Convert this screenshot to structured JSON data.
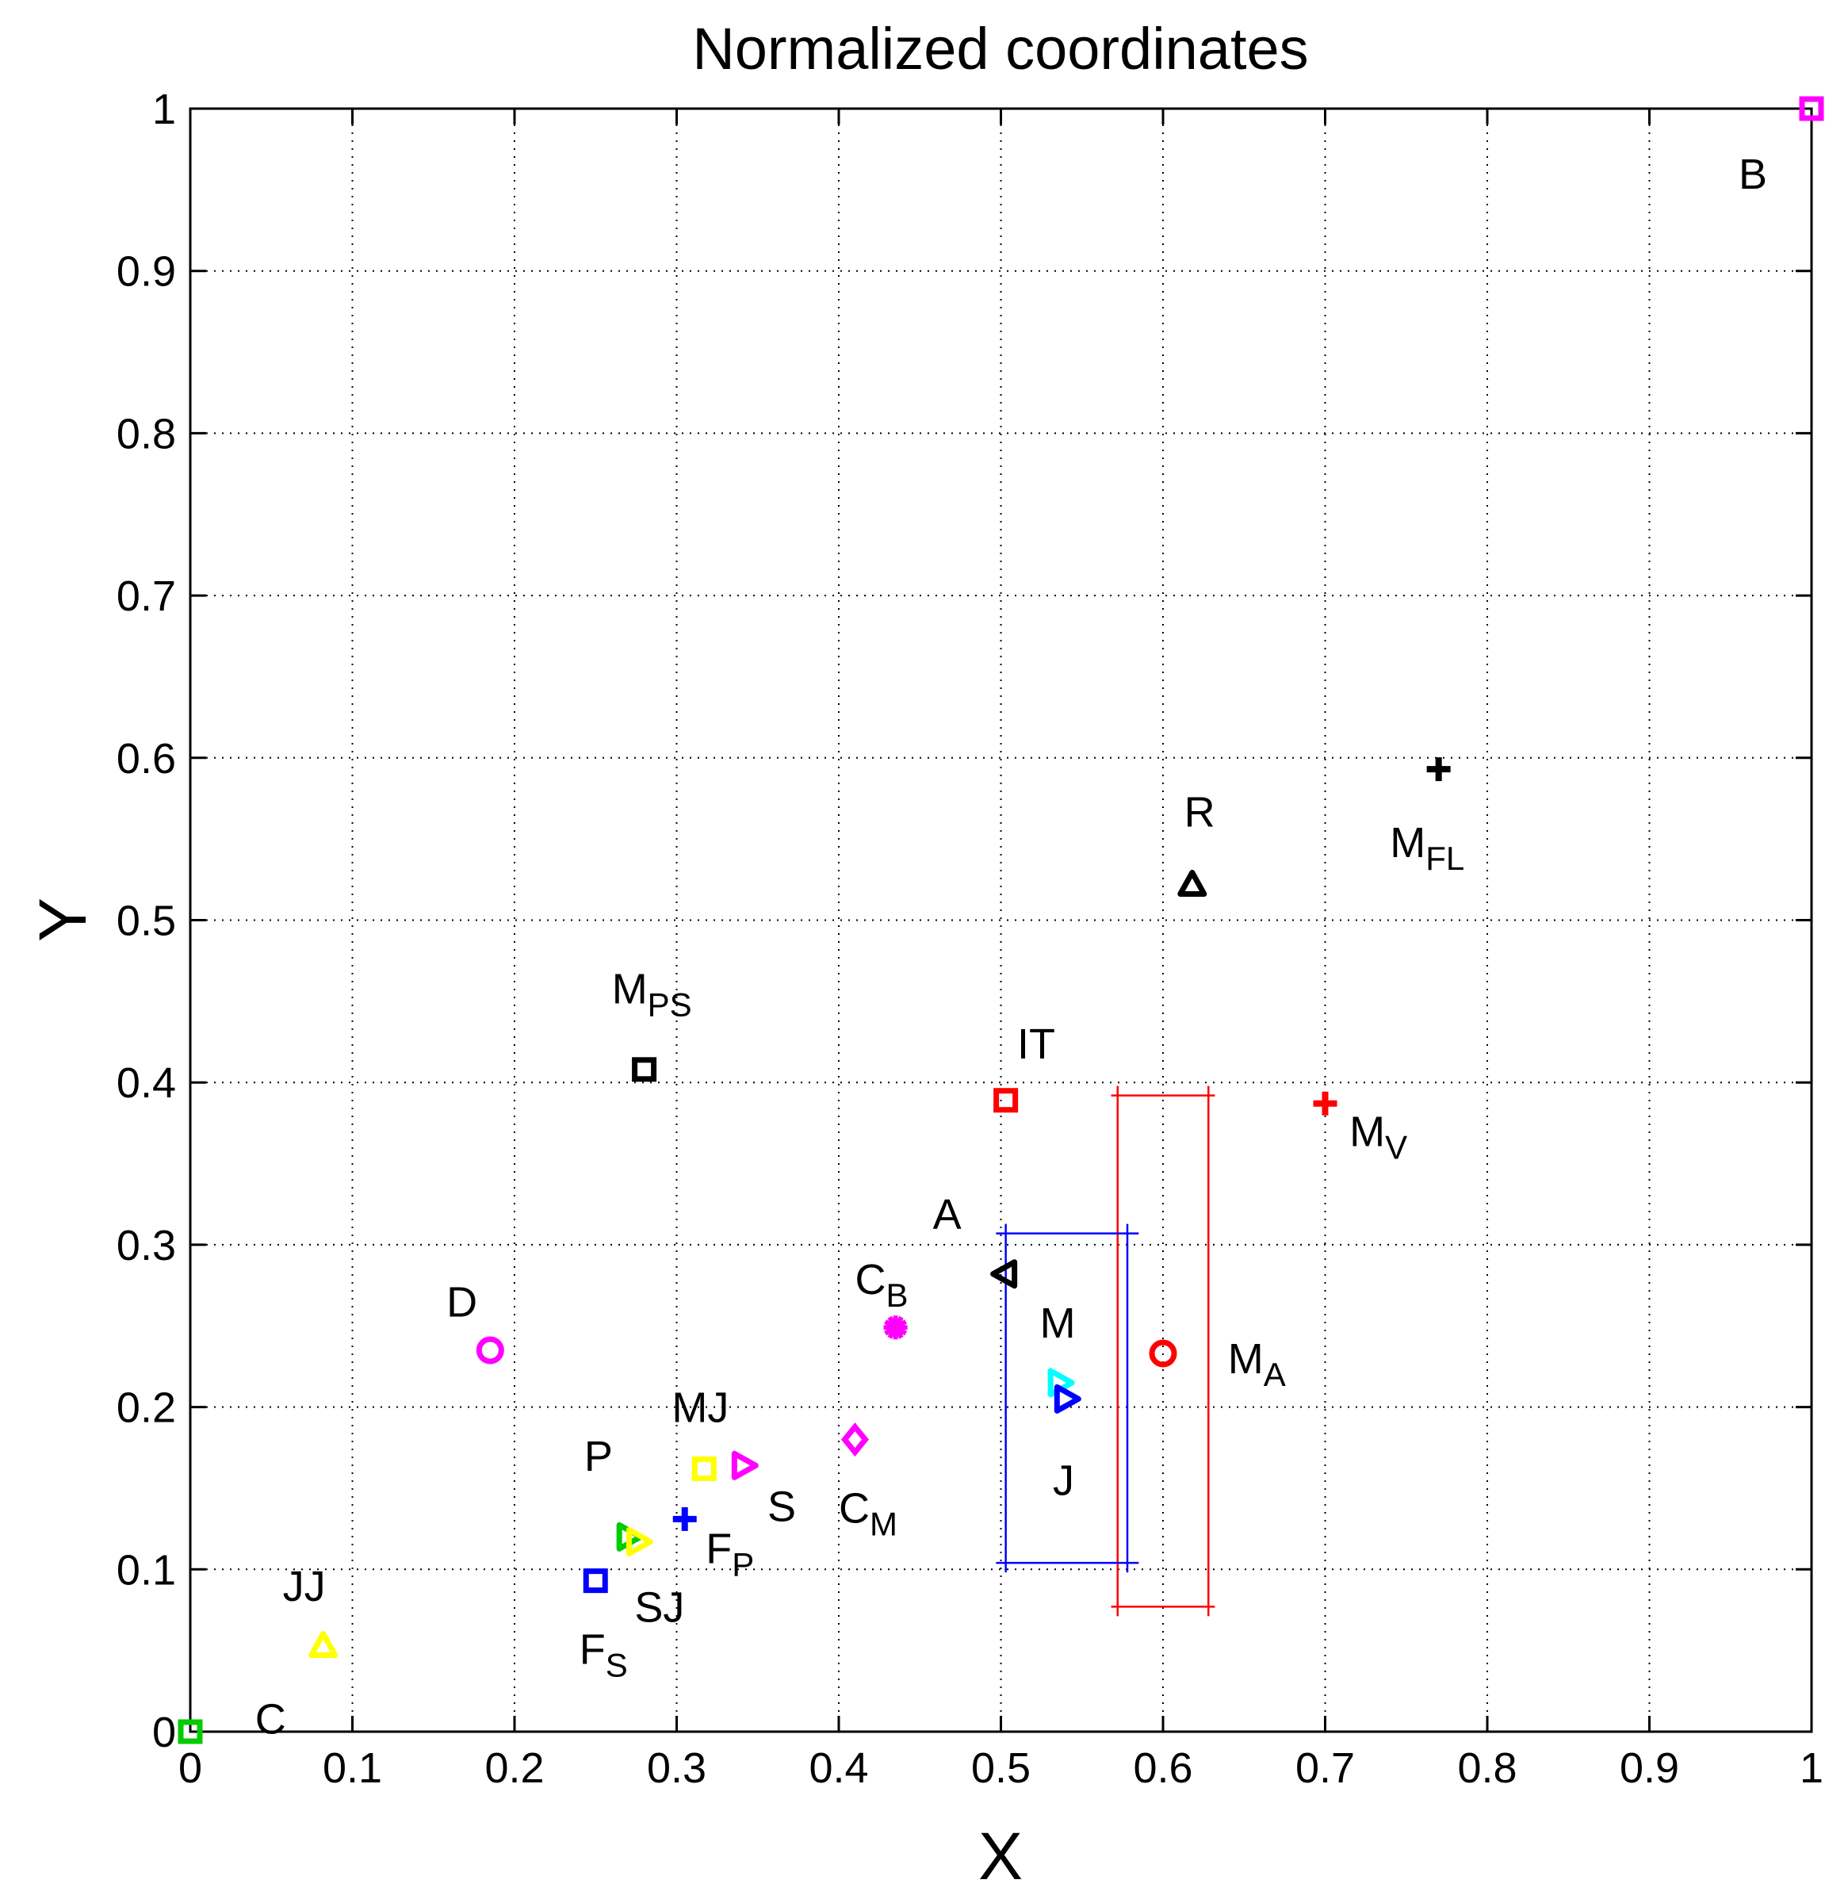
{
  "chart_data": {
    "type": "scatter",
    "title": "Normalized coordinates",
    "xlabel": "X",
    "ylabel": "Y",
    "xlim": [
      0,
      1
    ],
    "ylim": [
      0,
      1
    ],
    "xticks": [
      "0",
      "0.1",
      "0.2",
      "0.3",
      "0.4",
      "0.5",
      "0.6",
      "0.7",
      "0.8",
      "0.9",
      "1"
    ],
    "yticks": [
      "0",
      "0.1",
      "0.2",
      "0.3",
      "0.4",
      "0.5",
      "0.6",
      "0.7",
      "0.8",
      "0.9",
      "1"
    ],
    "grid": true,
    "points": [
      {
        "id": "B",
        "label": "B",
        "sub": "",
        "x": 1.0,
        "y": 1.0,
        "marker": "square",
        "color": "#ff00ff",
        "label_dx": -0.045,
        "label_dy": -0.04
      },
      {
        "id": "MFL",
        "label": "M",
        "sub": "FL",
        "x": 0.77,
        "y": 0.593,
        "marker": "plus",
        "color": "#000000",
        "label_dx": -0.03,
        "label_dy": -0.045
      },
      {
        "id": "R",
        "label": "R",
        "sub": "",
        "x": 0.618,
        "y": 0.522,
        "marker": "triangle-up",
        "color": "#000000",
        "label_dx": -0.005,
        "label_dy": 0.045
      },
      {
        "id": "MPS",
        "label": "M",
        "sub": "PS",
        "x": 0.28,
        "y": 0.408,
        "marker": "square",
        "color": "#000000",
        "label_dx": -0.02,
        "label_dy": 0.05
      },
      {
        "id": "IT",
        "label": "IT",
        "sub": "",
        "x": 0.503,
        "y": 0.389,
        "marker": "square",
        "color": "#ff0000",
        "label_dx": 0.007,
        "label_dy": 0.035
      },
      {
        "id": "MV",
        "label": "M",
        "sub": "V",
        "x": 0.7,
        "y": 0.387,
        "marker": "plus",
        "color": "#ff0000",
        "label_dx": 0.015,
        "label_dy": -0.017
      },
      {
        "id": "A",
        "label": "A",
        "sub": "",
        "x": 0.503,
        "y": 0.282,
        "marker": "triangle-left",
        "color": "#000000",
        "label_dx": -0.045,
        "label_dy": 0.037
      },
      {
        "id": "CB",
        "label": "C",
        "sub": "B",
        "x": 0.435,
        "y": 0.249,
        "marker": "star",
        "color": "#ff00ff",
        "label_dx": -0.025,
        "label_dy": 0.03
      },
      {
        "id": "D",
        "label": "D",
        "sub": "",
        "x": 0.185,
        "y": 0.235,
        "marker": "circle",
        "color": "#ff00ff",
        "label_dx": -0.027,
        "label_dy": 0.03
      },
      {
        "id": "MA",
        "label": "M",
        "sub": "A",
        "x": 0.6,
        "y": 0.233,
        "marker": "circle",
        "color": "#ff0000",
        "label_dx": 0.04,
        "label_dy": -0.003
      },
      {
        "id": "M",
        "label": "M",
        "sub": "",
        "x": 0.536,
        "y": 0.215,
        "marker": "triangle-right",
        "color": "#00ffff",
        "label_dx": -0.012,
        "label_dy": 0.037
      },
      {
        "id": "J",
        "label": "J",
        "sub": "",
        "x": 0.54,
        "y": 0.205,
        "marker": "triangle-right",
        "color": "#0000ff",
        "label_dx": -0.008,
        "label_dy": -0.05
      },
      {
        "id": "CM",
        "label": "C",
        "sub": "M",
        "x": 0.41,
        "y": 0.18,
        "marker": "diamond",
        "color": "#ff00ff",
        "label_dx": -0.01,
        "label_dy": -0.042
      },
      {
        "id": "MJ",
        "label": "MJ",
        "sub": "",
        "x": 0.317,
        "y": 0.162,
        "marker": "square",
        "color": "#ffff00",
        "label_dx": -0.02,
        "label_dy": 0.038
      },
      {
        "id": "S",
        "label": "S",
        "sub": "",
        "x": 0.341,
        "y": 0.164,
        "marker": "triangle-right",
        "color": "#ff00ff",
        "label_dx": 0.015,
        "label_dy": -0.025
      },
      {
        "id": "FP",
        "label": "F",
        "sub": "P",
        "x": 0.305,
        "y": 0.131,
        "marker": "plus",
        "color": "#0000ff",
        "label_dx": 0.013,
        "label_dy": -0.018
      },
      {
        "id": "P",
        "label": "P",
        "sub": "",
        "x": 0.27,
        "y": 0.12,
        "marker": "triangle-right",
        "color": "#00cc00",
        "label_dx": -0.027,
        "label_dy": 0.05
      },
      {
        "id": "SJ",
        "label": "SJ",
        "sub": "",
        "x": 0.276,
        "y": 0.117,
        "marker": "triangle-right",
        "color": "#ffff00",
        "label_dx": -0.002,
        "label_dy": -0.04
      },
      {
        "id": "FS",
        "label": "F",
        "sub": "S",
        "x": 0.25,
        "y": 0.093,
        "marker": "square",
        "color": "#0000ff",
        "label_dx": -0.01,
        "label_dy": -0.042
      },
      {
        "id": "JJ",
        "label": "JJ",
        "sub": "",
        "x": 0.082,
        "y": 0.053,
        "marker": "triangle-up",
        "color": "#ffff00",
        "label_dx": -0.025,
        "label_dy": 0.037
      },
      {
        "id": "C",
        "label": "C",
        "sub": "",
        "x": 0.0,
        "y": 0.0,
        "marker": "square",
        "color": "#00cc00",
        "label_dx": 0.04,
        "label_dy": 0.008
      }
    ],
    "boxes": [
      {
        "name": "M_A-range",
        "color": "#ff0000",
        "x0": 0.572,
        "x1": 0.628,
        "y0": 0.077,
        "y1": 0.392,
        "whisker_x0": 0.568,
        "whisker_x1": 0.632
      },
      {
        "name": "M-range",
        "color": "#0000ff",
        "x0": 0.503,
        "x1": 0.578,
        "y0": 0.104,
        "y1": 0.307,
        "whisker_x0": 0.497,
        "whisker_x1": 0.585
      }
    ]
  }
}
